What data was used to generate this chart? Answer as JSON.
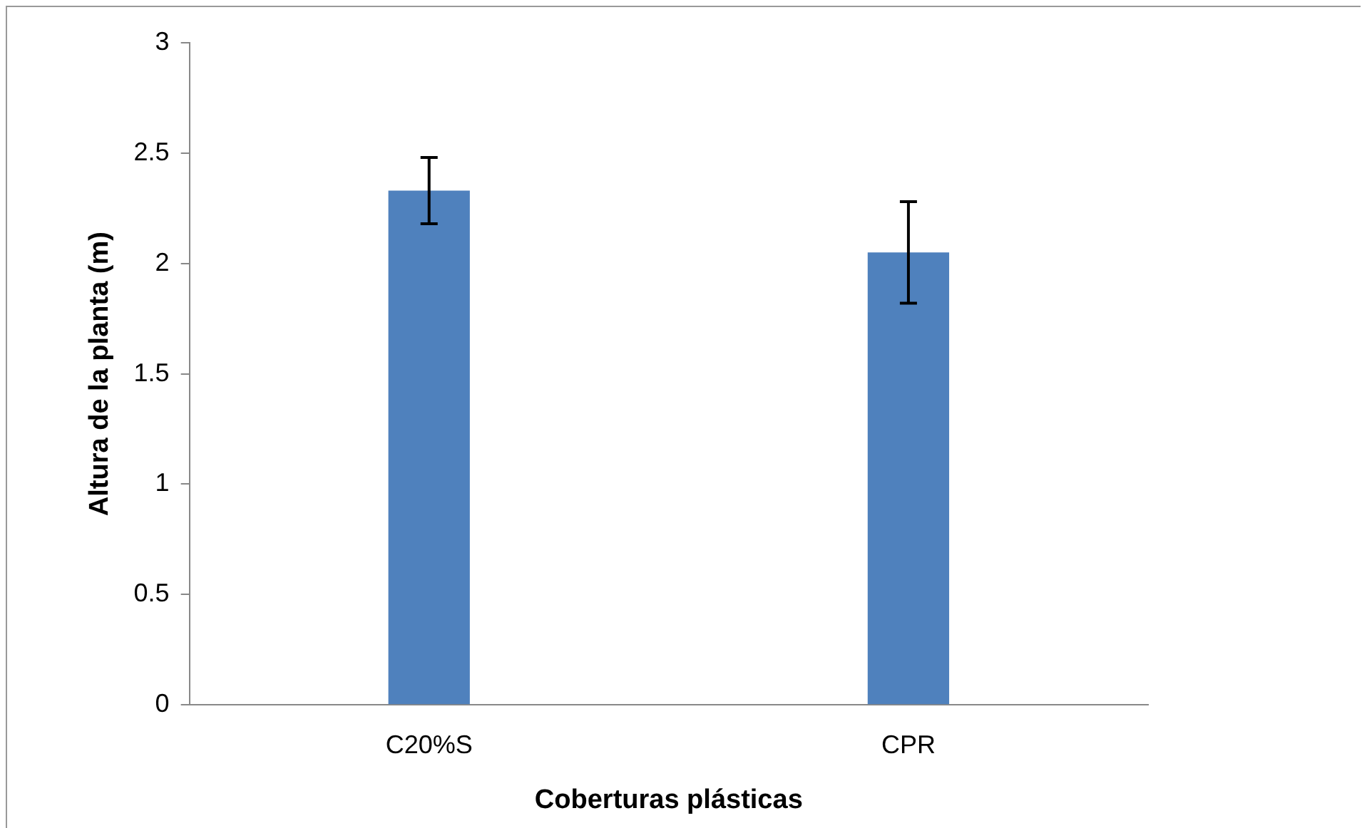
{
  "chart_data": {
    "type": "bar",
    "xlabel": "Coberturas plásticas",
    "ylabel": "Altura de la planta (m)",
    "categories": [
      "C20%S",
      "CPR"
    ],
    "values": [
      2.33,
      2.05
    ],
    "color": "#4f81bd",
    "errors": [
      0.15,
      0.23
    ],
    "ylim": [
      0,
      3
    ],
    "yticks": [
      0,
      0.5,
      1,
      1.5,
      2,
      2.5,
      3
    ],
    "grid": false,
    "legend": false
  }
}
